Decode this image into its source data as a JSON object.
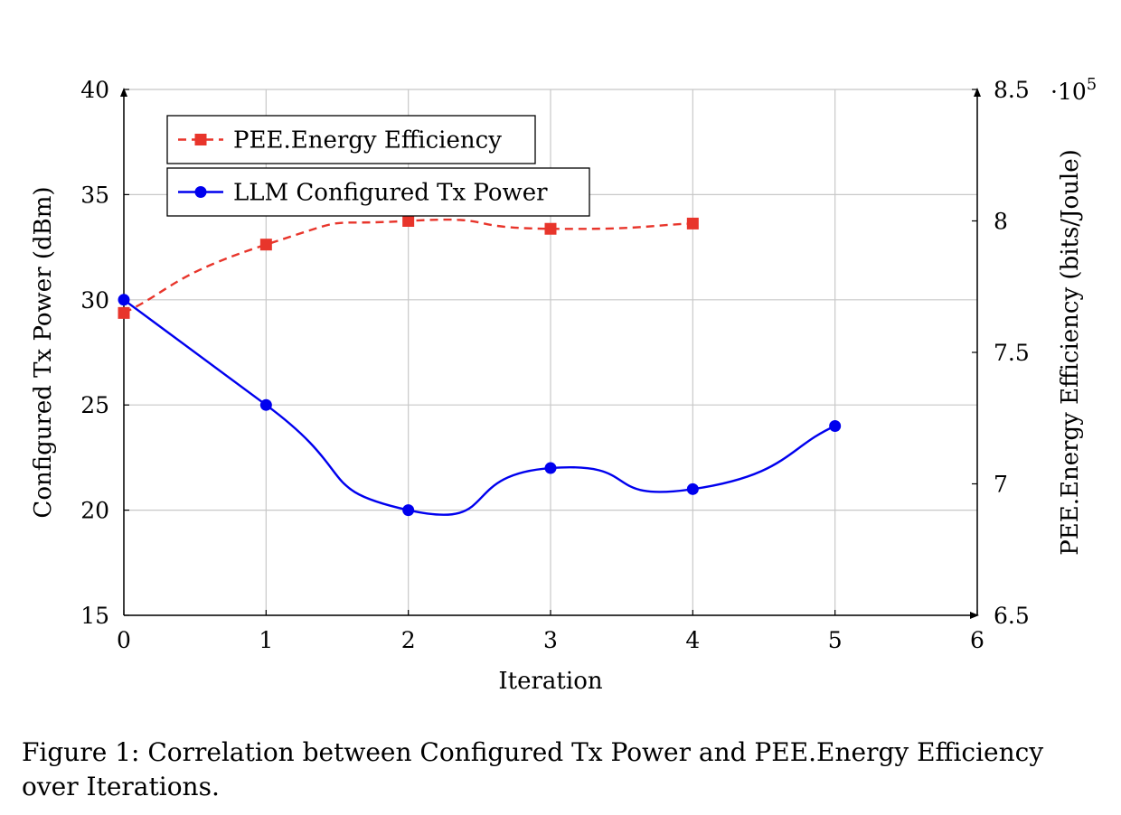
{
  "chart_data": {
    "type": "line",
    "xlabel": "Iteration",
    "ylabel_left": "Configured Tx Power (dBm)",
    "ylabel_right": "PEE.Energy Efficiency (bits/Joule)",
    "right_axis_multiplier": "·10^5",
    "xlim": [
      0,
      6
    ],
    "ylim_left": [
      15,
      40
    ],
    "ylim_right": [
      6.5,
      8.5
    ],
    "x_ticks": [
      "0",
      "1",
      "2",
      "3",
      "4",
      "5",
      "6"
    ],
    "y_left_ticks": [
      "15",
      "20",
      "25",
      "30",
      "35",
      "40"
    ],
    "y_right_ticks": [
      "6.5",
      "7",
      "7.5",
      "8",
      "8.5"
    ],
    "grid": true,
    "legend_position": "top-left",
    "series": [
      {
        "name": "PEE.Energy Efficiency",
        "axis": "right",
        "color": "#e8352b",
        "style": "dashed",
        "marker": "square",
        "x": [
          0,
          1,
          2,
          3,
          4
        ],
        "y": [
          7.65,
          7.91,
          8.0,
          7.97,
          7.99
        ]
      },
      {
        "name": "LLM Configured Tx Power",
        "axis": "left",
        "color": "#0000ee",
        "style": "solid",
        "marker": "circle",
        "x": [
          0,
          1,
          2,
          3,
          4,
          5
        ],
        "y": [
          30,
          25,
          20,
          22,
          21,
          24
        ]
      }
    ]
  },
  "caption": "Figure 1: Correlation between Configured Tx Power and PEE.Energy Efficiency over Iterations."
}
